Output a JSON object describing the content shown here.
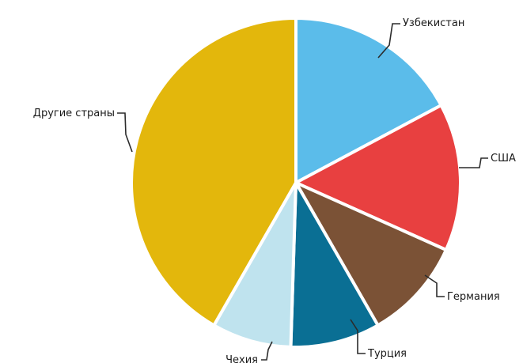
{
  "chart_data": {
    "type": "pie",
    "start_angle_deg": 0,
    "direction": "clockwise",
    "colors": {
      "uzbekistan": "#5bbcea",
      "usa": "#e84040",
      "germany": "#7b5236",
      "turkey": "#0a6f94",
      "czechia": "#bfe3ee",
      "other": "#e3b70c"
    },
    "slices": [
      {
        "key": "uzbekistan",
        "label": "Узбекистан",
        "value": 17.2
      },
      {
        "key": "usa",
        "label": "США",
        "value": 14.5
      },
      {
        "key": "germany",
        "label": "Германия",
        "value": 10.0
      },
      {
        "key": "turkey",
        "label": "Турция",
        "value": 8.8
      },
      {
        "key": "czechia",
        "label": "Чехия",
        "value": 7.8
      },
      {
        "key": "other",
        "label": "Другие страны",
        "value": 41.7
      }
    ]
  }
}
